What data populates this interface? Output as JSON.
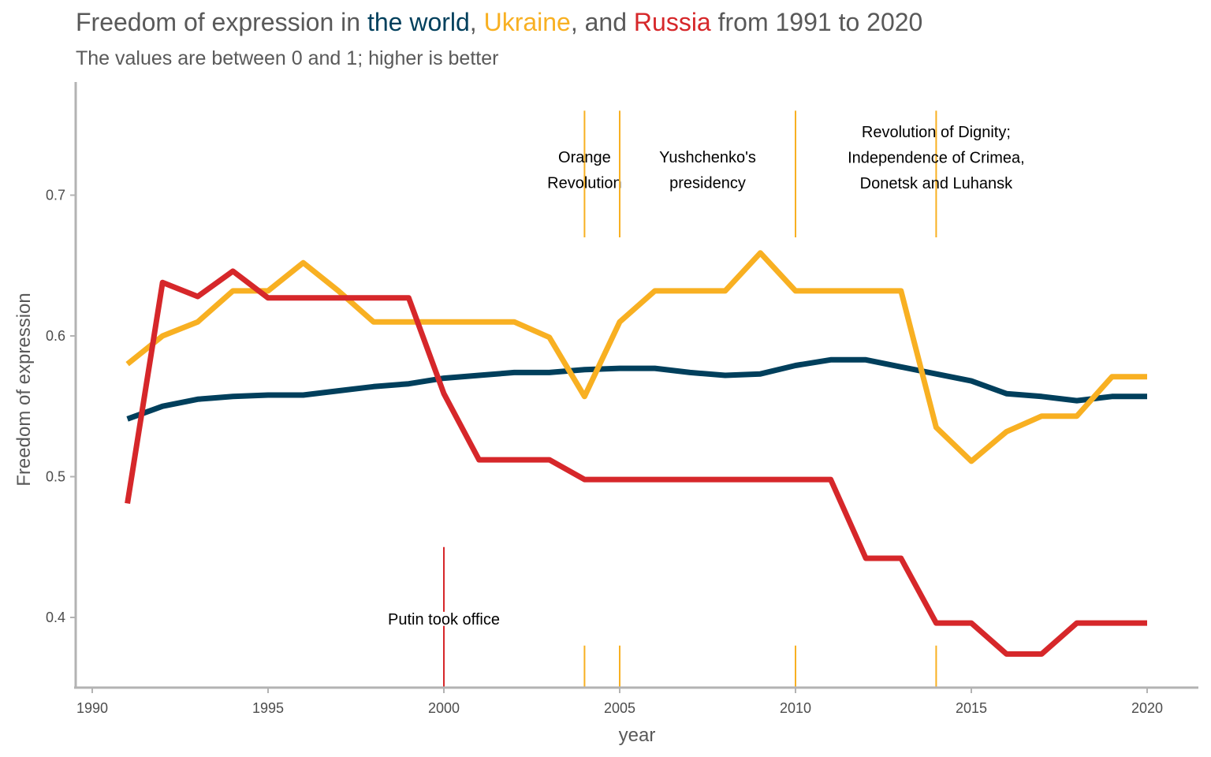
{
  "title": {
    "prefix": "Freedom of expression in ",
    "world": "the world",
    "sep1": ", ",
    "ukraine": "Ukraine",
    "sep2": ", and ",
    "russia": "Russia",
    "suffix": " from 1991 to 2020"
  },
  "subtitle": "The values are between 0 and 1; higher is better",
  "colors": {
    "world": "#003f5c",
    "ukraine": "#f8b022",
    "russia": "#d6272a",
    "title_text": "#595959",
    "axis": "#b3b3b3"
  },
  "chart_data": {
    "type": "line",
    "xlabel": "year",
    "ylabel": "Freedom of expression",
    "xlim": [
      1990,
      2020
    ],
    "ylim": [
      0.35,
      0.78
    ],
    "x_ticks": [
      1990,
      1995,
      2000,
      2005,
      2010,
      2015,
      2020
    ],
    "y_ticks": [
      0.4,
      0.5,
      0.6,
      0.7
    ],
    "grid": false,
    "legend": "none (series named by title colors)",
    "x": [
      1991,
      1992,
      1993,
      1994,
      1995,
      1996,
      1997,
      1998,
      1999,
      2000,
      2001,
      2002,
      2003,
      2004,
      2005,
      2006,
      2007,
      2008,
      2009,
      2010,
      2011,
      2012,
      2013,
      2014,
      2015,
      2016,
      2017,
      2018,
      2019,
      2020
    ],
    "series": [
      {
        "name": "the world",
        "color": "#003f5c",
        "values": [
          0.541,
          0.55,
          0.555,
          0.557,
          0.558,
          0.558,
          0.561,
          0.564,
          0.566,
          0.57,
          0.572,
          0.574,
          0.574,
          0.576,
          0.577,
          0.577,
          0.574,
          0.572,
          0.573,
          0.579,
          0.583,
          0.583,
          0.578,
          0.573,
          0.568,
          0.559,
          0.557,
          0.554,
          0.557,
          0.557
        ]
      },
      {
        "name": "Ukraine",
        "color": "#f8b022",
        "values": [
          0.58,
          0.6,
          0.61,
          0.632,
          0.632,
          0.652,
          0.632,
          0.61,
          0.61,
          0.61,
          0.61,
          0.61,
          0.599,
          0.557,
          0.61,
          0.632,
          0.632,
          0.632,
          0.659,
          0.632,
          0.632,
          0.632,
          0.632,
          0.535,
          0.511,
          0.532,
          0.543,
          0.543,
          0.571,
          0.571
        ]
      },
      {
        "name": "Russia",
        "color": "#d6272a",
        "values": [
          0.481,
          0.638,
          0.628,
          0.646,
          0.627,
          0.627,
          0.627,
          0.627,
          0.627,
          0.559,
          0.512,
          0.512,
          0.512,
          0.498,
          0.498,
          0.498,
          0.498,
          0.498,
          0.498,
          0.498,
          0.498,
          0.442,
          0.442,
          0.396,
          0.396,
          0.374,
          0.374,
          0.396,
          0.396,
          0.396
        ]
      }
    ],
    "annotations": [
      {
        "year": 2000,
        "color": "#d6272a",
        "lines": [
          "Putin took office"
        ],
        "label_y": 0.399,
        "segments": [
          [
            0.35,
            0.394
          ],
          [
            0.404,
            0.45
          ]
        ]
      },
      {
        "year": 2004,
        "color": "#f8b022",
        "lines": [
          "Orange",
          "Revolution"
        ],
        "label_y": 0.718,
        "segments": [
          [
            0.35,
            0.38
          ],
          [
            0.67,
            0.76
          ]
        ]
      },
      {
        "year": 2005,
        "color": "#f8b022",
        "lines": [
          "Yushchenko's",
          "presidency"
        ],
        "label_y": 0.718,
        "label_year": 2007.5,
        "segments": [
          [
            0.35,
            0.38
          ],
          [
            0.67,
            0.76
          ]
        ]
      },
      {
        "year": 2010,
        "color": "#f8b022",
        "lines": [],
        "segments": [
          [
            0.35,
            0.38
          ],
          [
            0.67,
            0.76
          ]
        ]
      },
      {
        "year": 2014,
        "color": "#f8b022",
        "lines": [
          "Revolution of Dignity;",
          "Independence of Crimea,",
          "Donetsk and Luhansk"
        ],
        "label_y": 0.727,
        "segments": [
          [
            0.35,
            0.38
          ],
          [
            0.67,
            0.76
          ]
        ]
      }
    ]
  }
}
